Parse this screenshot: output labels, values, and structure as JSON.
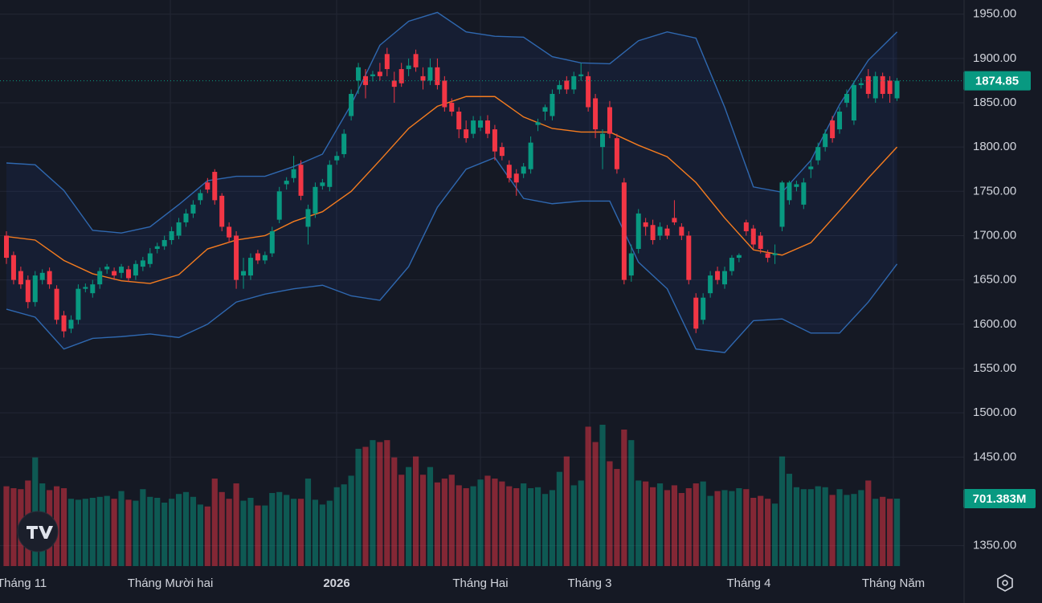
{
  "chart_data": {
    "type": "candlestick",
    "ylim": [
      1327,
      1966
    ],
    "yticks": [
      {
        "value": 1950,
        "label": "1950.00"
      },
      {
        "value": 1900,
        "label": "1900.00"
      },
      {
        "value": 1850,
        "label": "1850.00"
      },
      {
        "value": 1800,
        "label": "1800.00"
      },
      {
        "value": 1750,
        "label": "1750.00"
      },
      {
        "value": 1700,
        "label": "1700.00"
      },
      {
        "value": 1650,
        "label": "1650.00"
      },
      {
        "value": 1600,
        "label": "1600.00"
      },
      {
        "value": 1550,
        "label": "1550.00"
      },
      {
        "value": 1500,
        "label": "1500.00"
      },
      {
        "value": 1450,
        "label": "1450.00"
      },
      {
        "value": 1350,
        "label": "1350.00"
      }
    ],
    "x_labels": [
      "Tháng 11",
      "Tháng Mười hai",
      "2026",
      "Tháng Hai",
      "Tháng 3",
      "Tháng 4",
      "Tháng Năm"
    ],
    "grid": true,
    "up_color": "#089981",
    "down_color": "#f23645",
    "last_price": 1874.85,
    "volume_label": {
      "value": 701.383,
      "label": "701.383M"
    },
    "ohlc": [
      [
        1700,
        1705,
        1668,
        1675
      ],
      [
        1678,
        1682,
        1645,
        1650
      ],
      [
        1660,
        1665,
        1640,
        1645
      ],
      [
        1650,
        1655,
        1618,
        1625
      ],
      [
        1625,
        1660,
        1620,
        1655
      ],
      [
        1650,
        1662,
        1645,
        1658
      ],
      [
        1660,
        1664,
        1640,
        1645
      ],
      [
        1640,
        1644,
        1600,
        1605
      ],
      [
        1610,
        1615,
        1585,
        1592
      ],
      [
        1595,
        1610,
        1590,
        1605
      ],
      [
        1605,
        1645,
        1600,
        1640
      ],
      [
        1640,
        1646,
        1636,
        1642
      ],
      [
        1635,
        1650,
        1630,
        1645
      ],
      [
        1645,
        1664,
        1640,
        1660
      ],
      [
        1662,
        1668,
        1657,
        1665
      ],
      [
        1660,
        1664,
        1650,
        1655
      ],
      [
        1658,
        1668,
        1652,
        1665
      ],
      [
        1662,
        1666,
        1648,
        1652
      ],
      [
        1655,
        1672,
        1650,
        1668
      ],
      [
        1665,
        1676,
        1660,
        1672
      ],
      [
        1668,
        1686,
        1664,
        1680
      ],
      [
        1685,
        1692,
        1680,
        1688
      ],
      [
        1688,
        1700,
        1684,
        1695
      ],
      [
        1695,
        1710,
        1690,
        1705
      ],
      [
        1700,
        1720,
        1696,
        1715
      ],
      [
        1715,
        1730,
        1710,
        1725
      ],
      [
        1725,
        1740,
        1720,
        1735
      ],
      [
        1740,
        1752,
        1735,
        1748
      ],
      [
        1760,
        1765,
        1748,
        1752
      ],
      [
        1772,
        1775,
        1735,
        1740
      ],
      [
        1745,
        1748,
        1705,
        1710
      ],
      [
        1710,
        1715,
        1692,
        1698
      ],
      [
        1700,
        1705,
        1640,
        1650
      ],
      [
        1655,
        1675,
        1640,
        1660
      ],
      [
        1655,
        1680,
        1650,
        1675
      ],
      [
        1680,
        1684,
        1668,
        1672
      ],
      [
        1672,
        1682,
        1668,
        1678
      ],
      [
        1680,
        1710,
        1676,
        1705
      ],
      [
        1718,
        1755,
        1714,
        1750
      ],
      [
        1758,
        1766,
        1752,
        1762
      ],
      [
        1765,
        1790,
        1760,
        1775
      ],
      [
        1780,
        1785,
        1740,
        1745
      ],
      [
        1710,
        1735,
        1690,
        1730
      ],
      [
        1725,
        1760,
        1720,
        1755
      ],
      [
        1756,
        1764,
        1752,
        1760
      ],
      [
        1755,
        1785,
        1750,
        1780
      ],
      [
        1785,
        1795,
        1780,
        1790
      ],
      [
        1792,
        1820,
        1788,
        1815
      ],
      [
        1835,
        1865,
        1830,
        1860
      ],
      [
        1875,
        1895,
        1860,
        1890
      ],
      [
        1880,
        1888,
        1855,
        1870
      ],
      [
        1880,
        1886,
        1874,
        1882
      ],
      [
        1885,
        1895,
        1875,
        1880
      ],
      [
        1905,
        1912,
        1880,
        1888
      ],
      [
        1875,
        1885,
        1850,
        1868
      ],
      [
        1888,
        1895,
        1868,
        1872
      ],
      [
        1888,
        1900,
        1880,
        1892
      ],
      [
        1905,
        1910,
        1885,
        1890
      ],
      [
        1880,
        1890,
        1865,
        1875
      ],
      [
        1875,
        1900,
        1870,
        1890
      ],
      [
        1890,
        1900,
        1865,
        1870
      ],
      [
        1875,
        1880,
        1840,
        1845
      ],
      [
        1850,
        1855,
        1835,
        1840
      ],
      [
        1840,
        1845,
        1810,
        1820
      ],
      [
        1820,
        1830,
        1805,
        1810
      ],
      [
        1815,
        1835,
        1810,
        1830
      ],
      [
        1822,
        1835,
        1818,
        1830
      ],
      [
        1830,
        1836,
        1810,
        1815
      ],
      [
        1820,
        1825,
        1785,
        1795
      ],
      [
        1800,
        1805,
        1785,
        1790
      ],
      [
        1780,
        1785,
        1760,
        1765
      ],
      [
        1770,
        1775,
        1745,
        1760
      ],
      [
        1770,
        1782,
        1765,
        1778
      ],
      [
        1775,
        1812,
        1770,
        1805
      ],
      [
        1825,
        1832,
        1818,
        1828
      ],
      [
        1840,
        1848,
        1830,
        1845
      ],
      [
        1835,
        1865,
        1830,
        1860
      ],
      [
        1865,
        1875,
        1860,
        1870
      ],
      [
        1875,
        1880,
        1860,
        1865
      ],
      [
        1865,
        1885,
        1860,
        1880
      ],
      [
        1880,
        1895,
        1875,
        1882
      ],
      [
        1880,
        1885,
        1840,
        1845
      ],
      [
        1855,
        1860,
        1810,
        1820
      ],
      [
        1800,
        1820,
        1775,
        1815
      ],
      [
        1845,
        1852,
        1810,
        1815
      ],
      [
        1810,
        1815,
        1770,
        1775
      ],
      [
        1760,
        1765,
        1645,
        1650
      ],
      [
        1655,
        1690,
        1648,
        1680
      ],
      [
        1685,
        1730,
        1680,
        1725
      ],
      [
        1715,
        1720,
        1700,
        1710
      ],
      [
        1712,
        1718,
        1690,
        1695
      ],
      [
        1700,
        1715,
        1695,
        1710
      ],
      [
        1708,
        1712,
        1696,
        1700
      ],
      [
        1720,
        1740,
        1712,
        1715
      ],
      [
        1710,
        1714,
        1695,
        1700
      ],
      [
        1700,
        1705,
        1645,
        1650
      ],
      [
        1630,
        1635,
        1590,
        1595
      ],
      [
        1605,
        1635,
        1600,
        1630
      ],
      [
        1635,
        1660,
        1630,
        1655
      ],
      [
        1660,
        1665,
        1645,
        1650
      ],
      [
        1645,
        1665,
        1640,
        1660
      ],
      [
        1660,
        1678,
        1655,
        1675
      ],
      [
        1675,
        1680,
        1670,
        1678
      ],
      [
        1715,
        1718,
        1700,
        1705
      ],
      [
        1708,
        1712,
        1685,
        1690
      ],
      [
        1700,
        1704,
        1680,
        1685
      ],
      [
        1680,
        1684,
        1670,
        1675
      ],
      [
        1678,
        1690,
        1668,
        1680
      ],
      [
        1710,
        1762,
        1705,
        1760
      ],
      [
        1740,
        1762,
        1735,
        1760
      ],
      [
        1755,
        1762,
        1750,
        1758
      ],
      [
        1735,
        1765,
        1730,
        1760
      ],
      [
        1775,
        1785,
        1765,
        1778
      ],
      [
        1785,
        1805,
        1780,
        1800
      ],
      [
        1800,
        1820,
        1795,
        1815
      ],
      [
        1830,
        1835,
        1805,
        1810
      ],
      [
        1820,
        1845,
        1815,
        1840
      ],
      [
        1850,
        1865,
        1845,
        1860
      ],
      [
        1830,
        1875,
        1825,
        1870
      ],
      [
        1870,
        1878,
        1866,
        1872
      ],
      [
        1880,
        1888,
        1855,
        1860
      ],
      [
        1855,
        1885,
        1850,
        1880
      ],
      [
        1880,
        1884,
        1855,
        1860
      ],
      [
        1875,
        1880,
        1850,
        1860
      ],
      [
        1855,
        1878,
        1852,
        1874.85
      ]
    ],
    "volumes": [
      830,
      810,
      800,
      890,
      1130,
      860,
      790,
      830,
      810,
      700,
      690,
      700,
      710,
      720,
      730,
      700,
      780,
      690,
      680,
      800,
      720,
      710,
      660,
      700,
      750,
      770,
      720,
      640,
      620,
      910,
      770,
      700,
      860,
      680,
      710,
      630,
      630,
      760,
      770,
      740,
      700,
      700,
      910,
      690,
      640,
      680,
      820,
      850,
      940,
      1220,
      1240,
      1310,
      1290,
      1310,
      1130,
      950,
      1030,
      1140,
      950,
      1030,
      870,
      910,
      950,
      840,
      810,
      830,
      900,
      940,
      910,
      880,
      830,
      810,
      860,
      810,
      820,
      750,
      790,
      980,
      1140,
      840,
      890,
      1450,
      1290,
      1470,
      1090,
      1010,
      1420,
      1310,
      890,
      880,
      820,
      860,
      790,
      840,
      760,
      810,
      860,
      880,
      730,
      780,
      790,
      780,
      810,
      800,
      710,
      730,
      700,
      650,
      1140,
      960,
      820,
      800,
      800,
      830,
      820,
      740,
      800,
      740,
      750,
      790,
      890,
      700,
      720,
      700,
      701.383
    ],
    "band_index": [
      0,
      4,
      8,
      12,
      16,
      20,
      24,
      28,
      32,
      36,
      40,
      44,
      48,
      52,
      56,
      60,
      64,
      68,
      72,
      76,
      80,
      84,
      88,
      92,
      96,
      100,
      104,
      108,
      112,
      116,
      120,
      124
    ],
    "bands": [
      {
        "color": "#2f68b0",
        "values": [
          1782,
          1780,
          1751,
          1706,
          1703,
          1710,
          1735,
          1762,
          1767,
          1767,
          1778,
          1792,
          1848,
          1915,
          1942,
          1952,
          1930,
          1925,
          1924,
          1902,
          1895,
          1894,
          1920,
          1930,
          1923,
          1845,
          1755,
          1749,
          1785,
          1848,
          1898,
          1930
        ]
      },
      {
        "color": "#f57c1f",
        "values": [
          1699,
          1695,
          1672,
          1657,
          1649,
          1646,
          1656,
          1685,
          1695,
          1700,
          1716,
          1727,
          1750,
          1785,
          1821,
          1846,
          1857,
          1857,
          1834,
          1821,
          1817,
          1817,
          1802,
          1789,
          1760,
          1720,
          1684,
          1678,
          1692,
          1728,
          1765,
          1800
        ]
      },
      {
        "color": "#2f68b0",
        "values": [
          1617,
          1608,
          1572,
          1584,
          1586,
          1589,
          1585,
          1600,
          1625,
          1634,
          1640,
          1644,
          1632,
          1627,
          1665,
          1732,
          1775,
          1788,
          1742,
          1736,
          1739,
          1739,
          1670,
          1640,
          1572,
          1568,
          1604,
          1606,
          1590,
          1590,
          1625,
          1668
        ]
      }
    ]
  }
}
